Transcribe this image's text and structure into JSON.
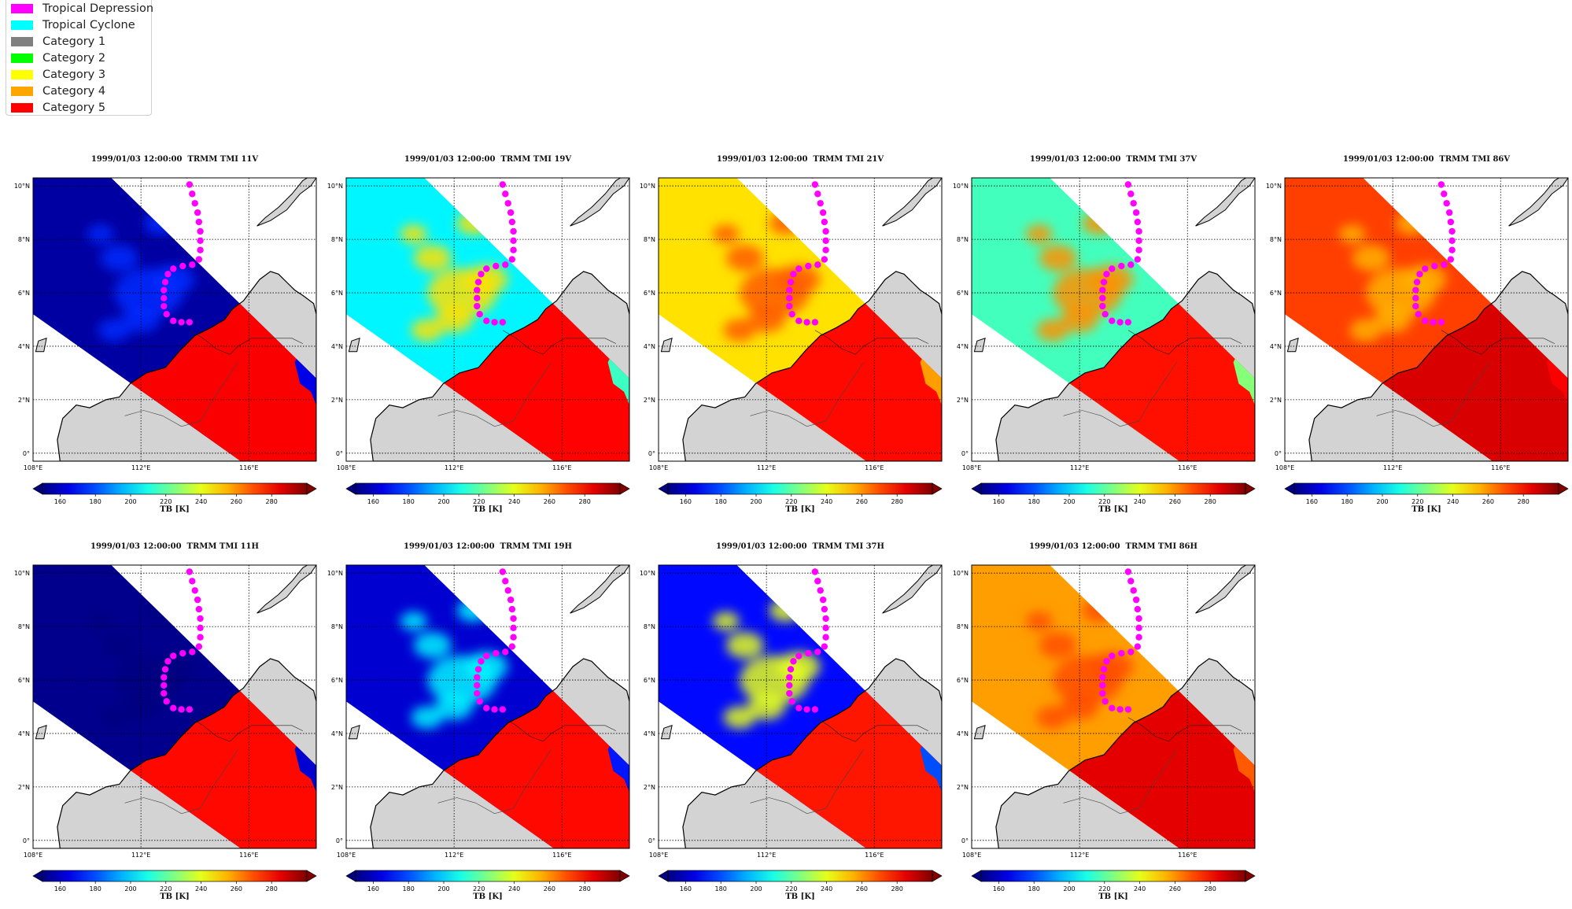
{
  "legend": {
    "items": [
      {
        "label": "Tropical Depression",
        "color": "#ff00ff"
      },
      {
        "label": "Tropical Cyclone",
        "color": "#00ffff"
      },
      {
        "label": "Category 1",
        "color": "#808080"
      },
      {
        "label": "Category 2",
        "color": "#00ff00"
      },
      {
        "label": "Category 3",
        "color": "#ffff00"
      },
      {
        "label": "Category 4",
        "color": "#ffa500"
      },
      {
        "label": "Category 5",
        "color": "#ff0000"
      }
    ]
  },
  "chart_data": {
    "type": "heatmap",
    "layout": "2x5 small multiples",
    "x_ticks": [
      "108°E",
      "112°E",
      "116°E"
    ],
    "y_ticks": [
      "0°",
      "2°N",
      "4°N",
      "6°N",
      "8°N",
      "10°N"
    ],
    "xlim": [
      108,
      118.5
    ],
    "ylim": [
      -0.3,
      10.3
    ],
    "colorbar": {
      "label": "TB [K]",
      "ticks": [
        "160",
        "180",
        "200",
        "220",
        "240",
        "260",
        "280"
      ],
      "vmin": 150,
      "vmax": 300,
      "extend": "both",
      "colormap": "jet"
    },
    "storm_track": {
      "category": "Tropical Depression",
      "color": "#ff00ff",
      "points": [
        [
          113.7,
          10.4
        ],
        [
          113.8,
          10.05
        ],
        [
          113.9,
          9.7
        ],
        [
          114.0,
          9.35
        ],
        [
          114.1,
          9.0
        ],
        [
          114.15,
          8.65
        ],
        [
          114.2,
          8.3
        ],
        [
          114.2,
          7.95
        ],
        [
          114.2,
          7.6
        ],
        [
          114.15,
          7.25
        ],
        [
          113.9,
          7.05
        ],
        [
          113.55,
          7.0
        ],
        [
          113.2,
          6.9
        ],
        [
          113.0,
          6.7
        ],
        [
          112.9,
          6.4
        ],
        [
          112.85,
          6.1
        ],
        [
          112.85,
          5.8
        ],
        [
          112.85,
          5.5
        ],
        [
          112.95,
          5.2
        ],
        [
          113.2,
          4.95
        ],
        [
          113.5,
          4.9
        ],
        [
          113.8,
          4.9
        ]
      ]
    },
    "panels": [
      {
        "title": "1999/01/03 12:00:00  TRMM TMI 11V",
        "channel": "11V",
        "colorbar_label": "TB [K]"
      },
      {
        "title": "1999/01/03 12:00:00  TRMM TMI 19V",
        "channel": "19V",
        "colorbar_label": "TB [K]"
      },
      {
        "title": "1999/01/03 12:00:00  TRMM TMI 21V",
        "channel": "21V",
        "colorbar_label": "TB [K]"
      },
      {
        "title": "1999/01/03 12:00:00  TRMM TMI 37V",
        "channel": "37V",
        "colorbar_label": "TB [K]"
      },
      {
        "title": "1999/01/03 12:00:00  TRMM TMI 86V",
        "channel": "86V",
        "colorbar_label": "TB [K]"
      },
      {
        "title": "1999/01/03 12:00:00  TRMM TMI 11H",
        "channel": "11H",
        "colorbar_label": "TB [K]"
      },
      {
        "title": "1999/01/03 12:00:00  TRMM TMI 19H",
        "channel": "19H",
        "colorbar_label": "TB [K]"
      },
      {
        "title": "1999/01/03 12:00:00  TRMM TMI 37H",
        "channel": "37H",
        "colorbar_label": "TB [K]"
      },
      {
        "title": "1999/01/03 12:00:00  TRMM TMI 86H",
        "channel": "86H",
        "colorbar_label": "TB [K]"
      }
    ]
  }
}
